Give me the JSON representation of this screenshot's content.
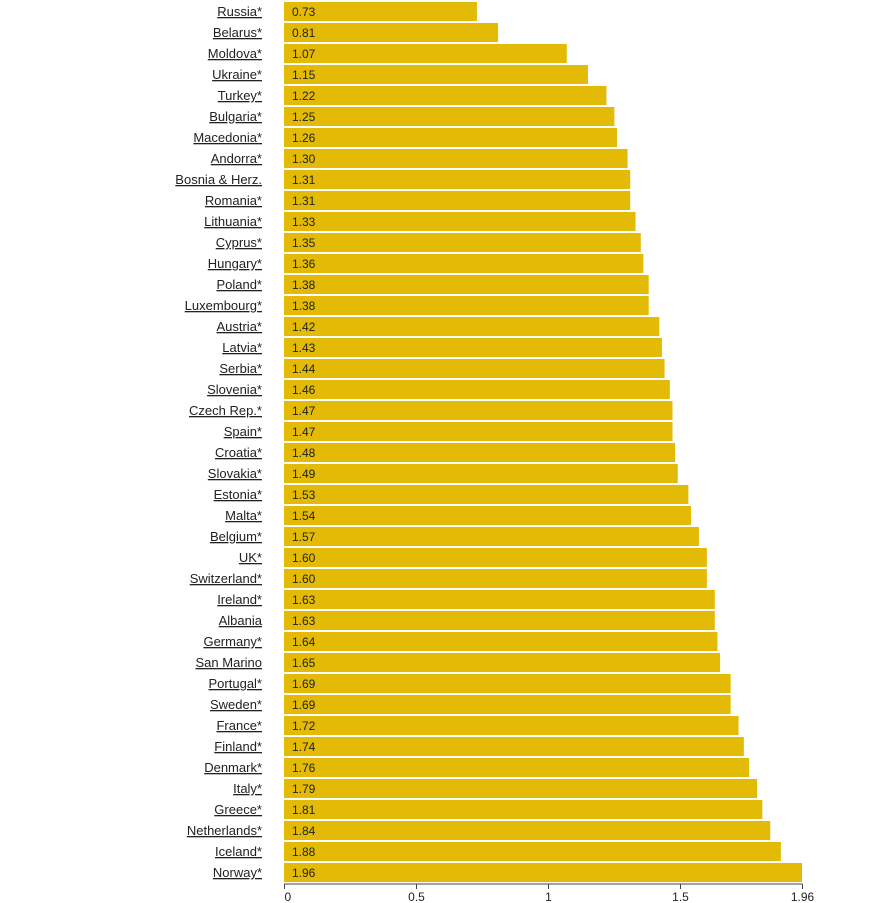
{
  "chart_data": {
    "type": "bar",
    "orientation": "horizontal",
    "categories": [
      "Russia*",
      "Belarus*",
      "Moldova*",
      "Ukraine*",
      "Turkey*",
      "Bulgaria*",
      "Macedonia*",
      "Andorra*",
      "Bosnia & Herz. ",
      "Romania*",
      "Lithuania*",
      "Cyprus*",
      "Hungary*",
      "Poland*",
      "Luxembourg*",
      "Austria*",
      "Latvia*",
      "Serbia*",
      "Slovenia*",
      "Czech Rep.*",
      "Spain*",
      "Croatia*",
      "Slovakia*",
      "Estonia*",
      "Malta*",
      "Belgium*",
      "UK*",
      "Switzerland*",
      "Ireland*",
      "Albania ",
      "Germany*",
      "San Marino ",
      "Portugal*",
      "Sweden*",
      "France*",
      "Finland*",
      "Denmark*",
      "Italy*",
      "Greece*",
      "Netherlands*",
      "Iceland*",
      "Norway*"
    ],
    "values": [
      0.73,
      0.81,
      1.07,
      1.15,
      1.22,
      1.25,
      1.26,
      1.3,
      1.31,
      1.31,
      1.33,
      1.35,
      1.36,
      1.38,
      1.38,
      1.42,
      1.43,
      1.44,
      1.46,
      1.47,
      1.47,
      1.48,
      1.49,
      1.53,
      1.54,
      1.57,
      1.6,
      1.6,
      1.63,
      1.63,
      1.64,
      1.65,
      1.69,
      1.69,
      1.72,
      1.74,
      1.76,
      1.79,
      1.81,
      1.84,
      1.88,
      1.96
    ],
    "value_labels": [
      "0.73",
      "0.81",
      "1.07",
      "1.15",
      "1.22",
      "1.25",
      "1.26",
      "1.30",
      "1.31",
      "1.31",
      "1.33",
      "1.35",
      "1.36",
      "1.38",
      "1.38",
      "1.42",
      "1.43",
      "1.44",
      "1.46",
      "1.47",
      "1.47",
      "1.48",
      "1.49",
      "1.53",
      "1.54",
      "1.57",
      "1.60",
      "1.60",
      "1.63",
      "1.63",
      "1.64",
      "1.65",
      "1.69",
      "1.69",
      "1.72",
      "1.74",
      "1.76",
      "1.79",
      "1.81",
      "1.84",
      "1.88",
      "1.96"
    ],
    "xlim": [
      0,
      1.96
    ],
    "x_ticks": [
      0,
      0.5,
      1,
      1.5,
      1.96
    ],
    "x_tick_labels": [
      "0",
      "0.5",
      "1",
      "1.5",
      "1.96"
    ],
    "title": "",
    "xlabel": "",
    "ylabel": "",
    "grid": false,
    "colors": {
      "bar": "#e3ba06",
      "background": "#ffffff",
      "axis": "#444444",
      "text": "#222222"
    }
  }
}
